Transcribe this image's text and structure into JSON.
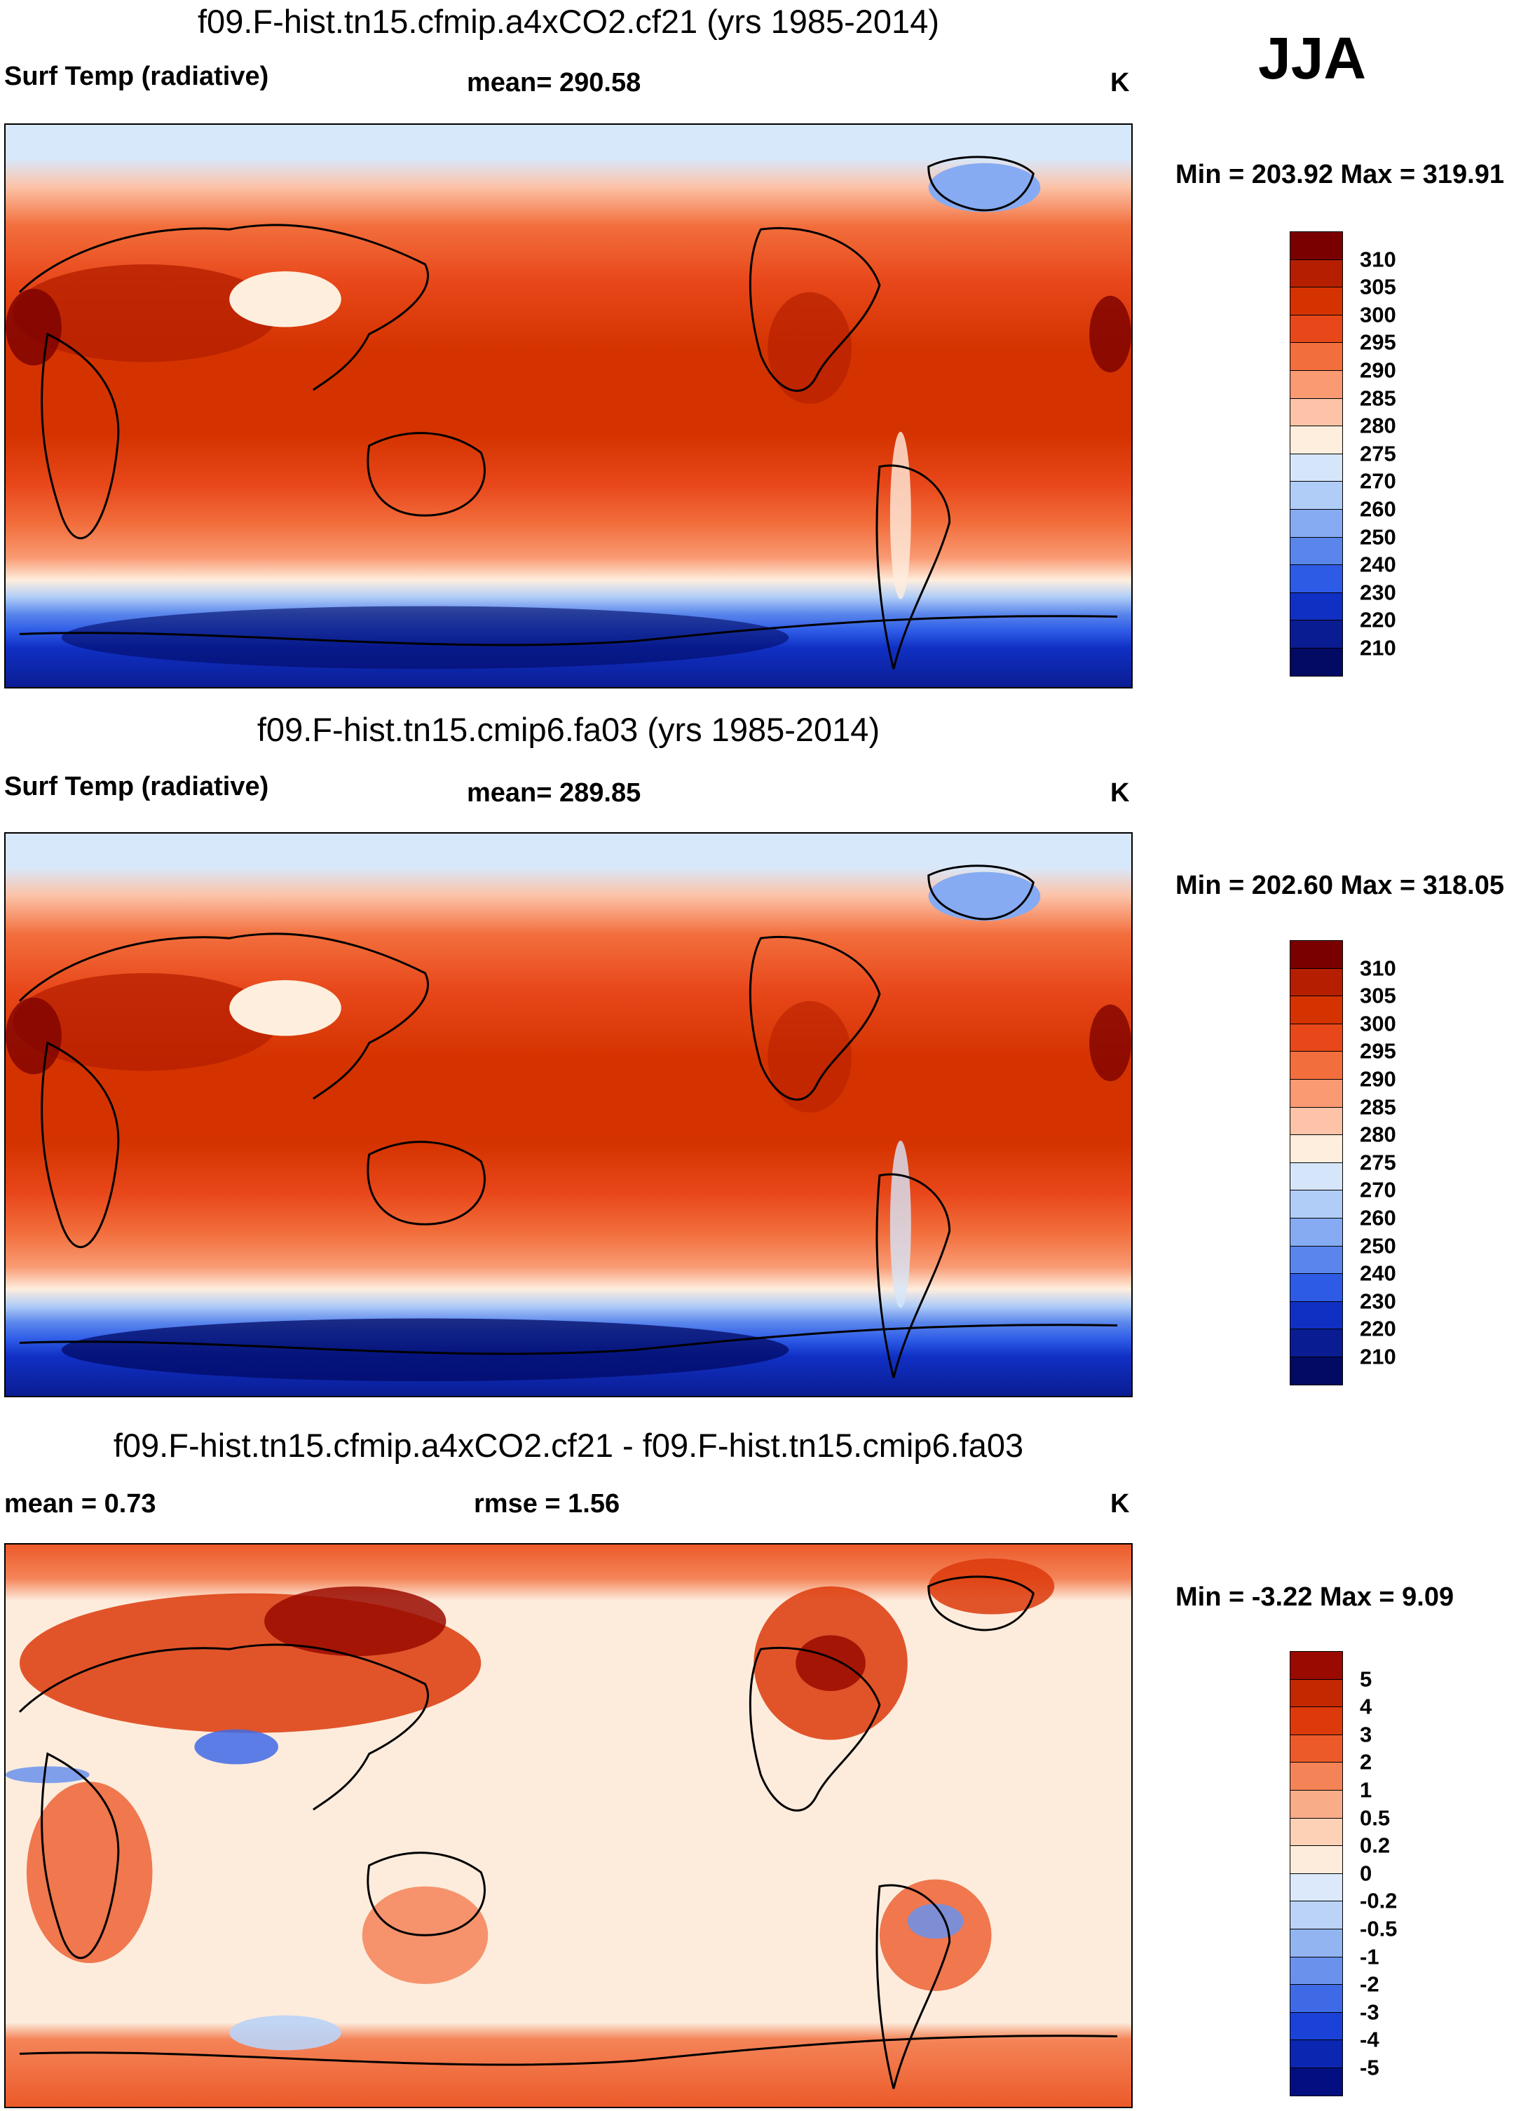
{
  "season": "JJA",
  "panels": [
    {
      "title": "f09.F-hist.tn15.cfmip.a4xCO2.cf21 (yrs 1985-2014)",
      "left_label": "Surf Temp (radiative)",
      "center_label": "mean= 290.58",
      "units": "K",
      "minmax": "Min = 203.92 Max = 319.91",
      "colorbar": {
        "labels": [
          "310",
          "305",
          "300",
          "295",
          "290",
          "285",
          "280",
          "275",
          "270",
          "260",
          "250",
          "240",
          "230",
          "220",
          "210"
        ],
        "colors": [
          "#7a0000",
          "#b51f00",
          "#d43300",
          "#e8471a",
          "#f26e3c",
          "#f99a73",
          "#fcc3a8",
          "#feeede",
          "#d6e6fa",
          "#b0cdf7",
          "#86abf2",
          "#5a86ec",
          "#2e5be6",
          "#1030c4",
          "#0a1c92",
          "#020a64"
        ]
      }
    },
    {
      "title": "f09.F-hist.tn15.cmip6.fa03 (yrs 1985-2014)",
      "left_label": "Surf Temp (radiative)",
      "center_label": "mean= 289.85",
      "units": "K",
      "minmax": "Min = 202.60 Max = 318.05",
      "colorbar": {
        "labels": [
          "310",
          "305",
          "300",
          "295",
          "290",
          "285",
          "280",
          "275",
          "270",
          "260",
          "250",
          "240",
          "230",
          "220",
          "210"
        ],
        "colors": [
          "#7a0000",
          "#b51f00",
          "#d43300",
          "#e8471a",
          "#f26e3c",
          "#f99a73",
          "#fcc3a8",
          "#feeede",
          "#d6e6fa",
          "#b0cdf7",
          "#86abf2",
          "#5a86ec",
          "#2e5be6",
          "#1030c4",
          "#0a1c92",
          "#020a64"
        ]
      }
    },
    {
      "title": "f09.F-hist.tn15.cfmip.a4xCO2.cf21 - f09.F-hist.tn15.cmip6.fa03",
      "left_label": "mean =   0.73",
      "center_label": "rmse =    1.56",
      "units": "K",
      "minmax": "Min =  -3.22 Max =   9.09",
      "colorbar": {
        "labels": [
          "5",
          "4",
          "3",
          "2",
          "1",
          "0.5",
          "0.2",
          "0",
          "-0.2",
          "-0.5",
          "-1",
          "-2",
          "-3",
          "-4",
          "-5"
        ],
        "colors": [
          "#9a0a00",
          "#c42800",
          "#dc3a0a",
          "#ec5a2a",
          "#f48458",
          "#f9ac88",
          "#fcd1b6",
          "#fdecdc",
          "#dce9fb",
          "#bad3f7",
          "#92b5f2",
          "#6a92ed",
          "#3f6ae6",
          "#1b42d8",
          "#0b26b0",
          "#030f80"
        ]
      }
    }
  ]
}
